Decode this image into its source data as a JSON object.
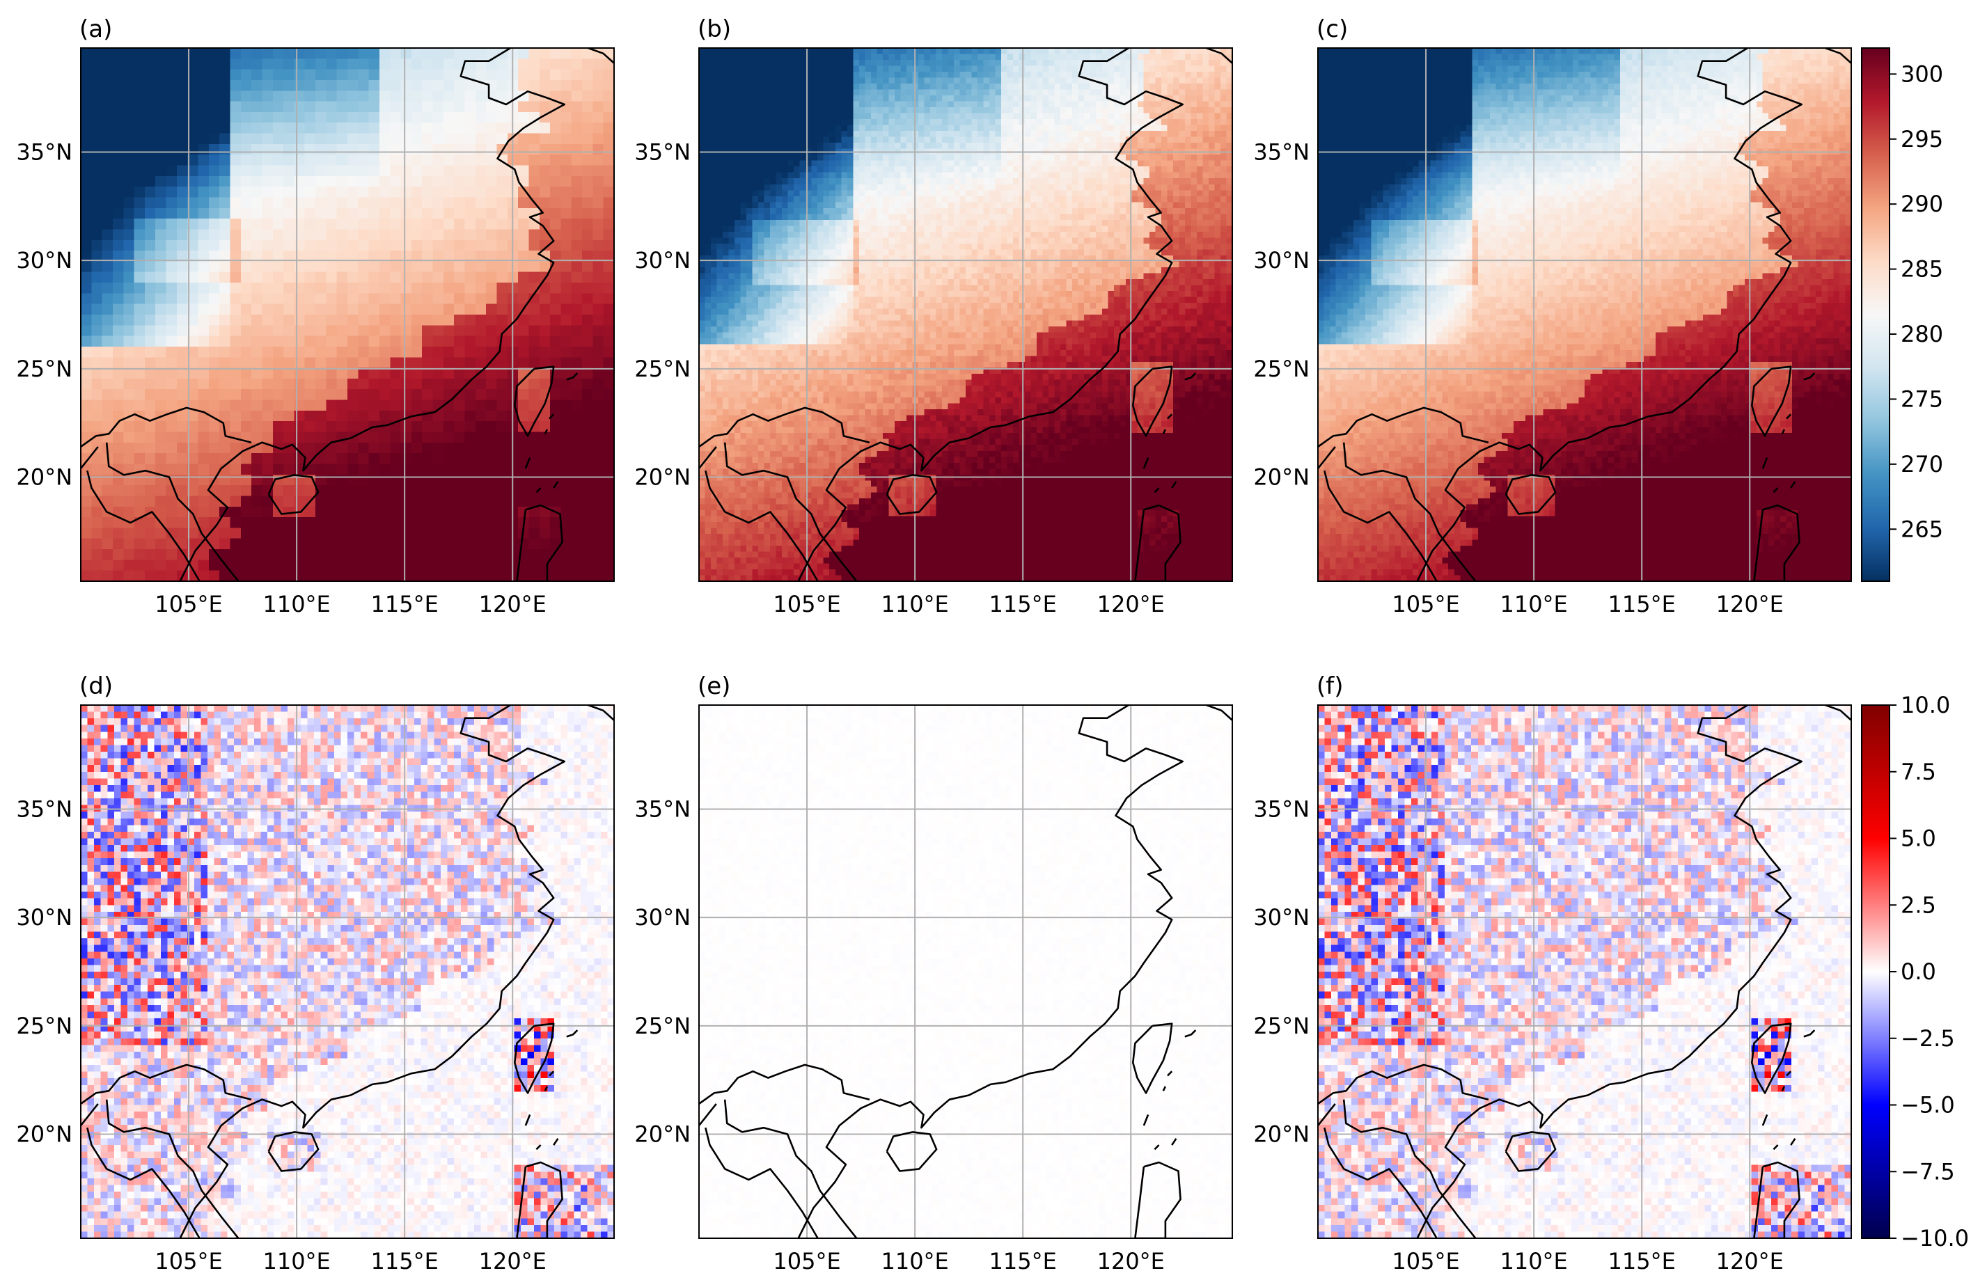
{
  "figure": {
    "panels": [
      {
        "id": "a",
        "label": "(a)",
        "kind": "temperature",
        "style": "coarse"
      },
      {
        "id": "b",
        "label": "(b)",
        "kind": "temperature",
        "style": "fine"
      },
      {
        "id": "c",
        "label": "(c)",
        "kind": "temperature",
        "style": "medium"
      },
      {
        "id": "d",
        "label": "(d)",
        "kind": "difference",
        "style": "strong"
      },
      {
        "id": "e",
        "label": "(e)",
        "kind": "difference",
        "style": "flat"
      },
      {
        "id": "f",
        "label": "(f)",
        "kind": "difference",
        "style": "strong"
      }
    ],
    "map_extent": {
      "lon": [
        100,
        124.7
      ],
      "lat": [
        15.2,
        39.8
      ]
    },
    "gridlines": {
      "lon_values": [
        105,
        110,
        115,
        120
      ],
      "lon_labels": [
        "105°E",
        "110°E",
        "115°E",
        "120°E"
      ],
      "lat_values": [
        20,
        25,
        30,
        35
      ],
      "lat_labels": [
        "20°N",
        "25°N",
        "30°N",
        "35°N"
      ]
    },
    "colorbar_top": {
      "cmap": "RdBu_r",
      "range": [
        261,
        302
      ],
      "ticks": [
        265,
        270,
        275,
        280,
        285,
        290,
        295,
        300
      ],
      "tick_labels": [
        "265",
        "270",
        "275",
        "280",
        "285",
        "290",
        "295",
        "300"
      ]
    },
    "colorbar_bottom": {
      "cmap": "seismic",
      "range": [
        -10,
        10
      ],
      "ticks": [
        -10,
        -7.5,
        -5,
        -2.5,
        0,
        2.5,
        5,
        7.5,
        10
      ],
      "tick_labels": [
        "−10.0",
        "−7.5",
        "−5.0",
        "−2.5",
        "0.0",
        "2.5",
        "5.0",
        "7.5",
        "10.0"
      ]
    },
    "colors": {
      "coastline": "#000000",
      "gridline": "#b0b0b0",
      "frame": "#000000"
    }
  }
}
